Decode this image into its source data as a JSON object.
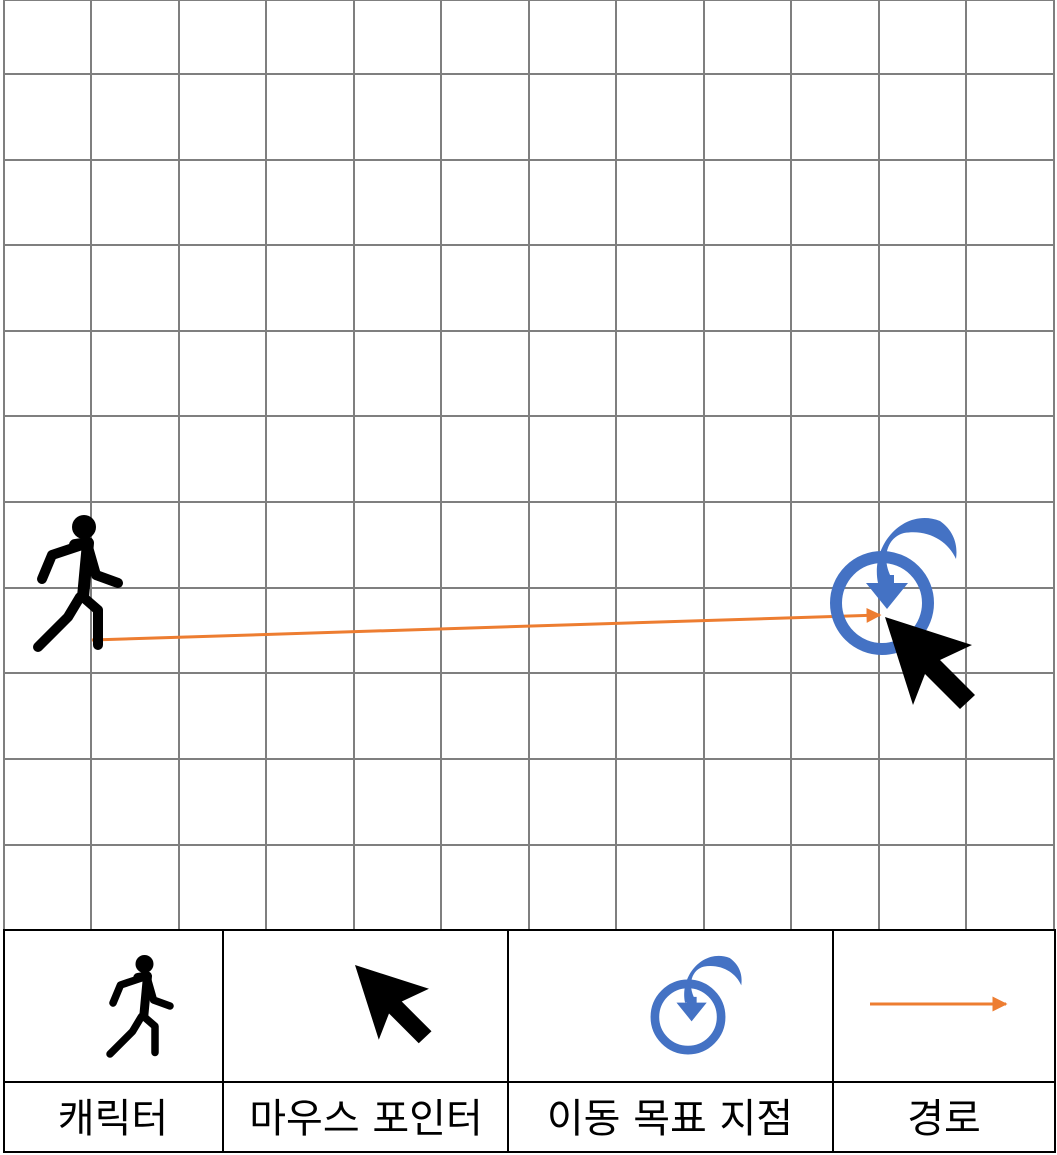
{
  "legend": {
    "items": [
      {
        "key": "character",
        "icon": "walking-person-icon",
        "label": "캐릭터"
      },
      {
        "key": "mouse",
        "icon": "mouse-pointer-icon",
        "label": "마우스 포인터"
      },
      {
        "key": "target",
        "icon": "move-target-icon",
        "label": "이동 목표 지점"
      },
      {
        "key": "path",
        "icon": "path-arrow-icon",
        "label": "경로"
      }
    ]
  },
  "colors": {
    "grid": "#7f7f7f",
    "path": "#ed7d31",
    "target": "#4472c4",
    "icon": "#000000"
  }
}
